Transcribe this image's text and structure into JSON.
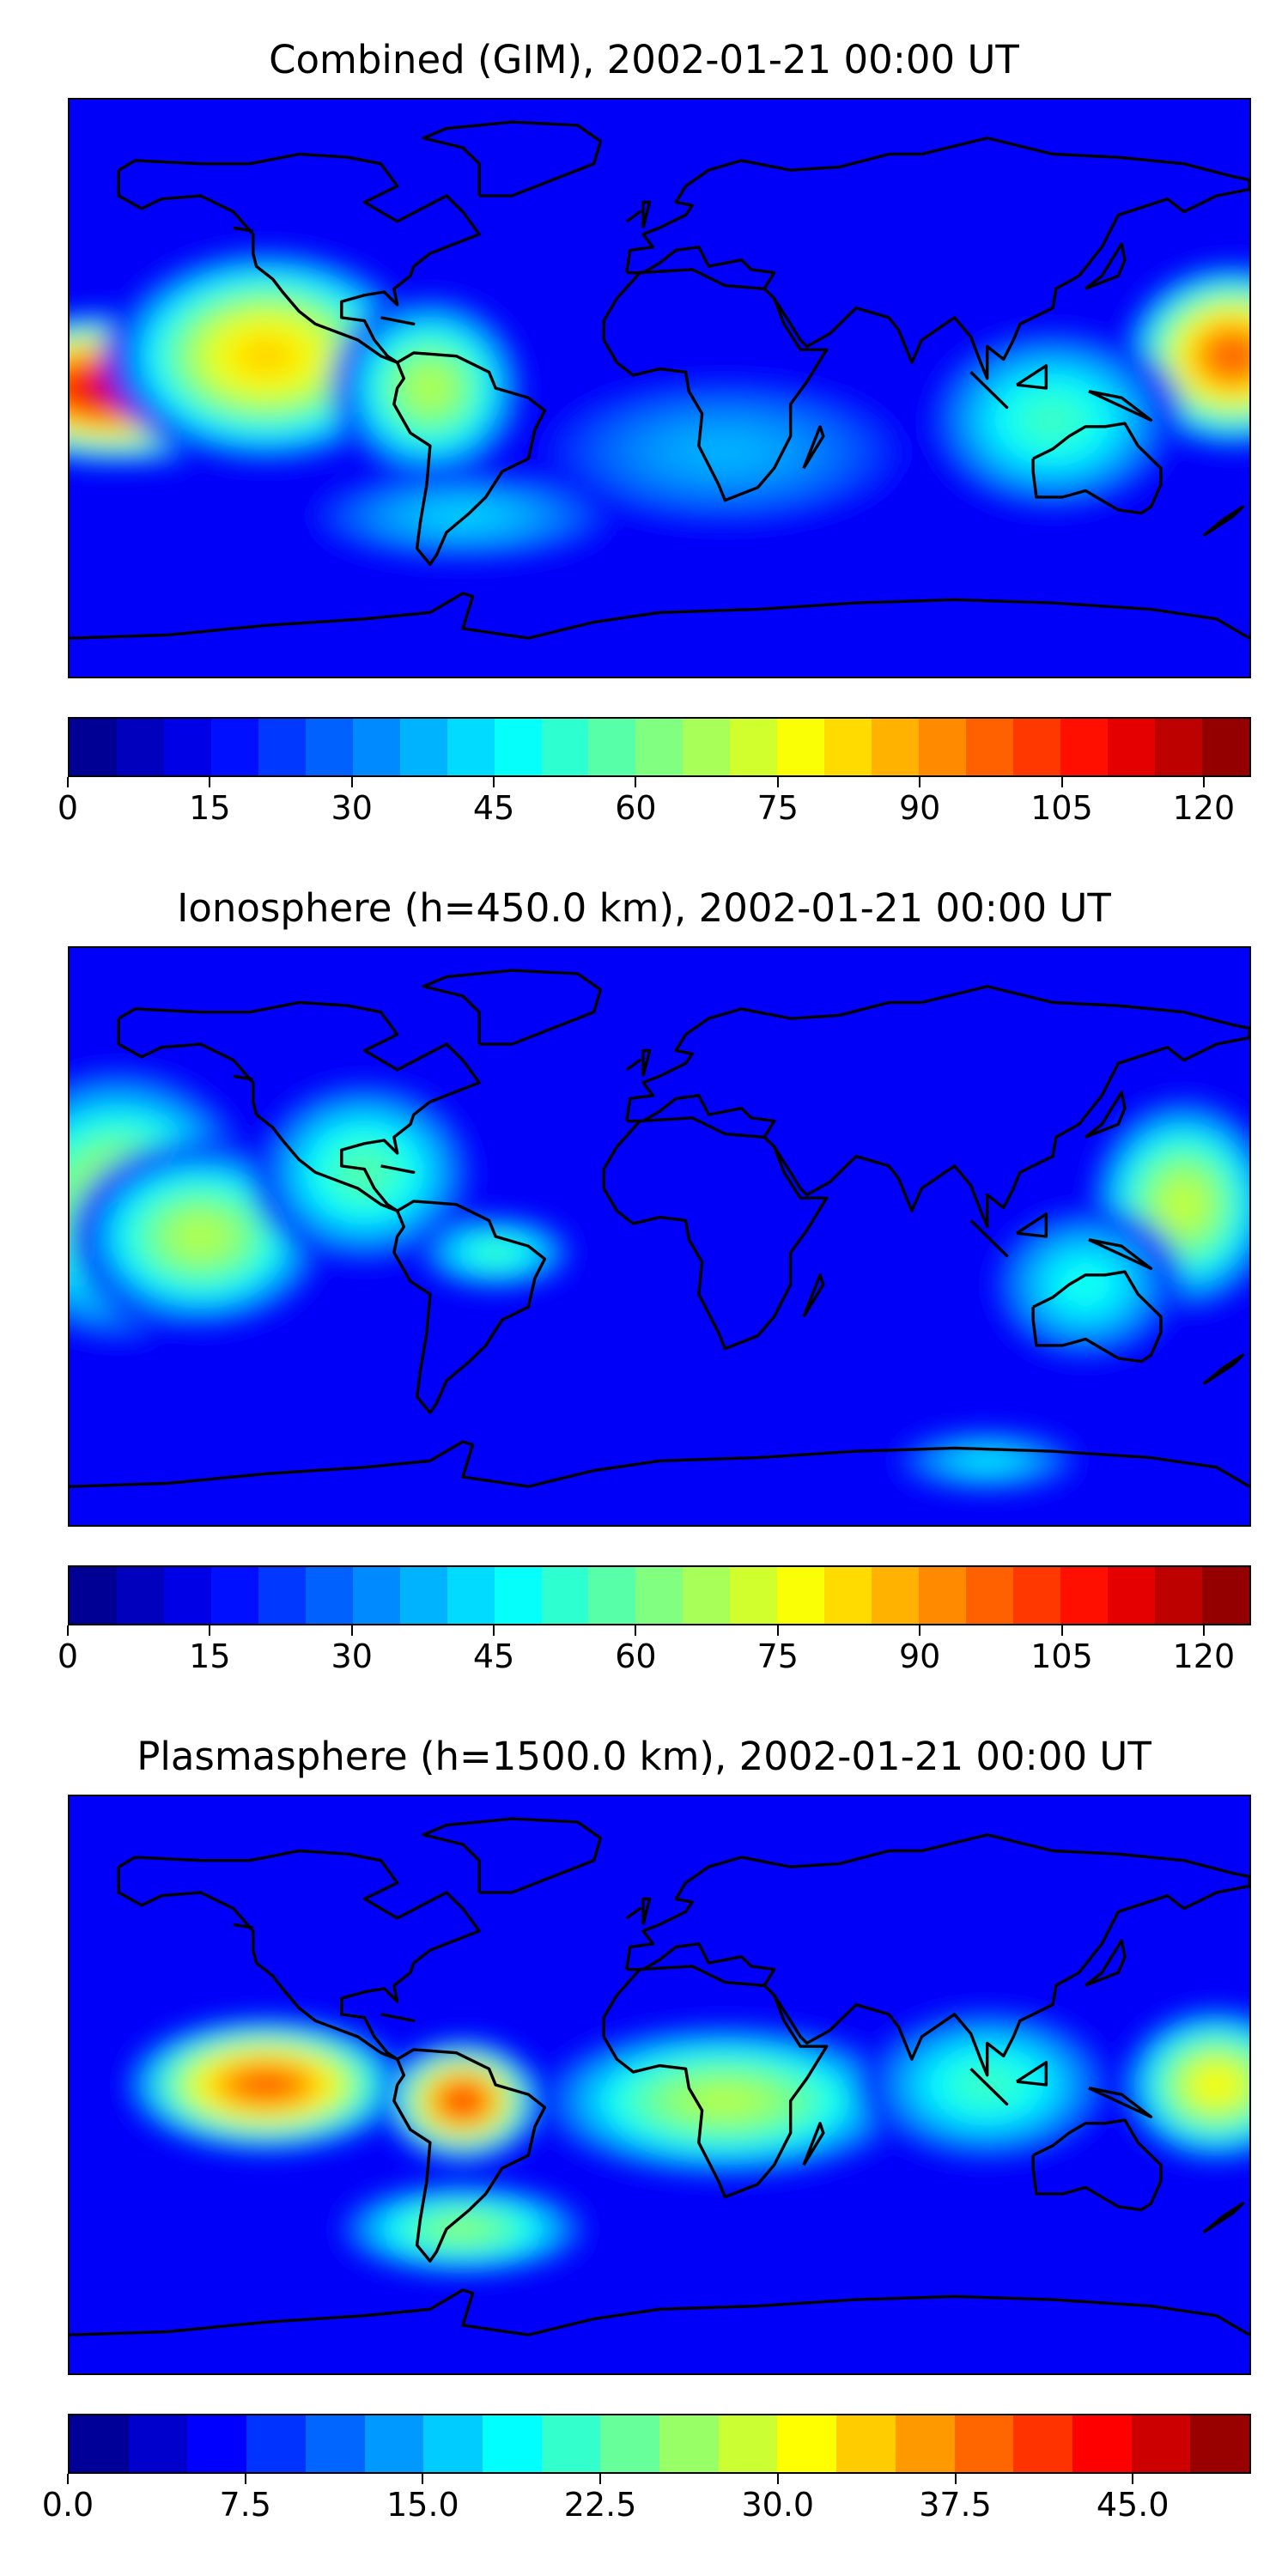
{
  "panels": [
    {
      "title": "Combined (GIM), 2002-01-21 00:00 UT",
      "colorbar": {
        "min": 0,
        "max": 125,
        "tick_labels": [
          "0",
          "15",
          "30",
          "45",
          "60",
          "75",
          "90",
          "105",
          "120"
        ],
        "tick_values": [
          0,
          15,
          30,
          45,
          60,
          75,
          90,
          105,
          120
        ],
        "levels": 25
      },
      "field": [
        {
          "lon": -165,
          "lat": 0,
          "value": 118,
          "spread": [
            55,
            25
          ]
        },
        {
          "lon": -120,
          "lat": 10,
          "value": 85,
          "spread": [
            50,
            35
          ]
        },
        {
          "lon": 175,
          "lat": 10,
          "value": 100,
          "spread": [
            35,
            30
          ]
        },
        {
          "lon": -70,
          "lat": 0,
          "value": 70,
          "spread": [
            30,
            30
          ]
        },
        {
          "lon": 120,
          "lat": -10,
          "value": 55,
          "spread": [
            40,
            30
          ]
        },
        {
          "lon": 20,
          "lat": -20,
          "value": 38,
          "spread": [
            60,
            25
          ]
        },
        {
          "lon": -60,
          "lat": -40,
          "value": 42,
          "spread": [
            50,
            15
          ]
        }
      ]
    },
    {
      "title": "Ionosphere  (h=450.0 km), 2002-01-21 00:00 UT",
      "colorbar": {
        "min": 0,
        "max": 125,
        "tick_labels": [
          "0",
          "15",
          "30",
          "45",
          "60",
          "75",
          "90",
          "105",
          "120"
        ],
        "tick_values": [
          0,
          15,
          30,
          45,
          60,
          75,
          90,
          105,
          120
        ],
        "levels": 25
      },
      "field": [
        {
          "lon": -165,
          "lat": 10,
          "value": 72,
          "spread": [
            45,
            45
          ]
        },
        {
          "lon": -140,
          "lat": 0,
          "value": 70,
          "spread": [
            40,
            30
          ]
        },
        {
          "lon": 160,
          "lat": 10,
          "value": 72,
          "spread": [
            30,
            35
          ]
        },
        {
          "lon": -90,
          "lat": 20,
          "value": 58,
          "spread": [
            35,
            30
          ]
        },
        {
          "lon": -50,
          "lat": -5,
          "value": 55,
          "spread": [
            25,
            12
          ]
        },
        {
          "lon": 130,
          "lat": -15,
          "value": 50,
          "spread": [
            30,
            25
          ]
        },
        {
          "lon": 100,
          "lat": -70,
          "value": 45,
          "spread": [
            30,
            10
          ]
        }
      ]
    },
    {
      "title": "Plasmasphere (h=1500.0 km), 2002-01-21 00:00 UT",
      "colorbar": {
        "min": 0,
        "max": 50,
        "tick_labels": [
          "0.0",
          "7.5",
          "15.0",
          "22.5",
          "30.0",
          "37.5",
          "45.0"
        ],
        "tick_values": [
          0,
          7.5,
          15,
          22.5,
          30,
          37.5,
          45
        ],
        "levels": 20
      },
      "field": [
        {
          "lon": -120,
          "lat": 0,
          "value": 40,
          "spread": [
            45,
            22
          ]
        },
        {
          "lon": -60,
          "lat": -5,
          "value": 42,
          "spread": [
            25,
            20
          ]
        },
        {
          "lon": 20,
          "lat": -5,
          "value": 28,
          "spread": [
            60,
            25
          ]
        },
        {
          "lon": 170,
          "lat": 0,
          "value": 32,
          "spread": [
            30,
            25
          ]
        },
        {
          "lon": 100,
          "lat": 0,
          "value": 22,
          "spread": [
            40,
            25
          ]
        },
        {
          "lon": -60,
          "lat": -45,
          "value": 26,
          "spread": [
            40,
            15
          ]
        }
      ]
    }
  ]
}
